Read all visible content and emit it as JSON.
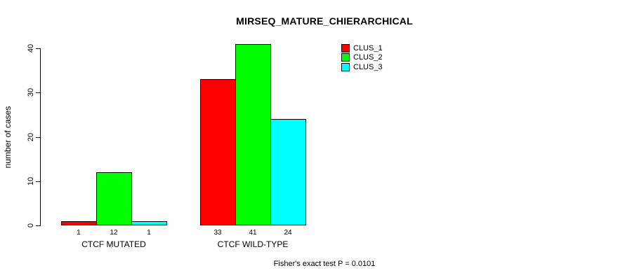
{
  "title": "MIRSEQ_MATURE_CHIERARCHICAL",
  "footer_note": "Fisher's exact test P = 0.0101",
  "colors": {
    "clus_1": "#FF0000",
    "clus_2": "#00FF00",
    "clus_3": "#00FFFF",
    "axis": "#000000",
    "background": "#FFFFFF"
  },
  "chart_data": {
    "type": "bar",
    "title": "MIRSEQ_MATURE_CHIERARCHICAL",
    "categories": [
      "CTCF MUTATED",
      "CTCF WILD-TYPE"
    ],
    "series": [
      {
        "name": "CLUS_1",
        "color": "#FF0000",
        "values": [
          1,
          33
        ]
      },
      {
        "name": "CLUS_2",
        "color": "#00FF00",
        "values": [
          12,
          41
        ]
      },
      {
        "name": "CLUS_3",
        "color": "#00FFFF",
        "values": [
          1,
          24
        ]
      }
    ],
    "bar_value_labels": [
      [
        "1",
        "12",
        "1"
      ],
      [
        "33",
        "41",
        "24"
      ]
    ],
    "xlabel": "",
    "ylabel": "number of cases",
    "ylim": [
      0,
      40
    ],
    "yticks": [
      0,
      10,
      20,
      30,
      40
    ],
    "grid": false,
    "legend_position": "top-right",
    "annotation": "Fisher's exact test P = 0.0101"
  }
}
